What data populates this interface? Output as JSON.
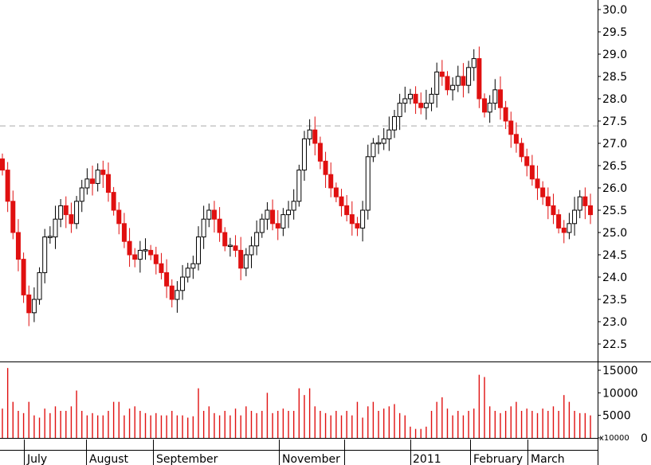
{
  "colors": {
    "up_body": "#ffffff",
    "up_outline": "#000000",
    "down_body": "#e01010",
    "down_outline": "#e01010",
    "volume_bar": "#e01010",
    "axis": "#000000",
    "reference_line": "#a9a9a9"
  },
  "chart_data": [
    {
      "type": "candlestick",
      "title": "",
      "xlabel": "",
      "ylabel": "",
      "ylim": [
        22.0,
        30.2
      ],
      "y_ticks": [
        "30.0",
        "29.5",
        "29.0",
        "28.5",
        "28.0",
        "27.5",
        "27.0",
        "26.5",
        "26.0",
        "25.5",
        "25.0",
        "24.5",
        "24.0",
        "23.5",
        "23.0",
        "22.5"
      ],
      "reference_line": {
        "value": 27.4,
        "style": "dashed"
      },
      "grid": false,
      "months": [
        "July",
        "August",
        "September",
        "November",
        "2011",
        "February",
        "March"
      ],
      "closes": [
        26.4,
        25.7,
        25.0,
        24.4,
        23.6,
        23.2,
        23.5,
        24.1,
        24.9,
        24.9,
        25.3,
        25.6,
        25.4,
        25.2,
        25.7,
        26.0,
        26.2,
        26.1,
        26.4,
        26.3,
        25.9,
        25.5,
        25.2,
        24.8,
        24.5,
        24.4,
        24.6,
        24.6,
        24.5,
        24.3,
        24.1,
        23.8,
        23.5,
        23.7,
        24.0,
        24.2,
        24.3,
        24.9,
        25.3,
        25.5,
        25.3,
        25.0,
        24.7,
        24.7,
        24.6,
        24.2,
        24.5,
        24.7,
        25.0,
        25.3,
        25.5,
        25.2,
        25.1,
        25.4,
        25.5,
        25.7,
        26.4,
        27.1,
        27.3,
        27.0,
        26.6,
        26.3,
        26.0,
        25.8,
        25.6,
        25.4,
        25.2,
        25.1,
        25.5,
        26.7,
        27.0,
        27.0,
        27.1,
        27.3,
        27.6,
        27.9,
        28.0,
        28.1,
        27.9,
        27.8,
        27.9,
        28.1,
        28.6,
        28.5,
        28.2,
        28.3,
        28.5,
        28.3,
        28.7,
        28.9,
        28.0,
        27.7,
        27.9,
        28.2,
        27.8,
        27.5,
        27.2,
        27.0,
        26.7,
        26.5,
        26.2,
        26.0,
        25.8,
        25.6,
        25.4,
        25.1,
        25.0,
        25.2,
        25.5,
        25.8,
        25.6,
        25.4
      ]
    },
    {
      "type": "bar",
      "title": "",
      "xlabel": "",
      "ylabel": "",
      "unit_label": "x10000",
      "ylim": [
        0,
        16000
      ],
      "y_ticks": [
        "15000",
        "10000",
        "5000",
        "0"
      ],
      "values": [
        6500,
        15500,
        8000,
        6000,
        5500,
        8000,
        5000,
        4500,
        6500,
        5500,
        7000,
        6000,
        6000,
        7000,
        10500,
        6000,
        5000,
        5500,
        5000,
        5000,
        6000,
        8000,
        8000,
        5000,
        6500,
        7000,
        6000,
        5500,
        5000,
        5500,
        5000,
        5000,
        6000,
        5000,
        5000,
        4500,
        4800,
        11000,
        6000,
        7000,
        5500,
        5000,
        6000,
        5000,
        6500,
        5000,
        7000,
        6000,
        5500,
        6000,
        10000,
        5500,
        6000,
        6500,
        6000,
        6000,
        11000,
        9500,
        11000,
        7000,
        6000,
        5500,
        5000,
        6000,
        5000,
        6000,
        5000,
        8000,
        4500,
        7000,
        8000,
        6000,
        6500,
        7000,
        7500,
        5500,
        5000,
        2500,
        2000,
        2000,
        2500,
        6000,
        8000,
        9000,
        6500,
        5000,
        6000,
        5000,
        6000,
        6500,
        14000,
        13500,
        7000,
        6000,
        5500,
        6000,
        7000,
        8000,
        6000,
        6500,
        6000,
        5500,
        6500,
        6000,
        7000,
        6000,
        9500,
        8000,
        6000,
        5500,
        5500,
        5000
      ]
    }
  ]
}
